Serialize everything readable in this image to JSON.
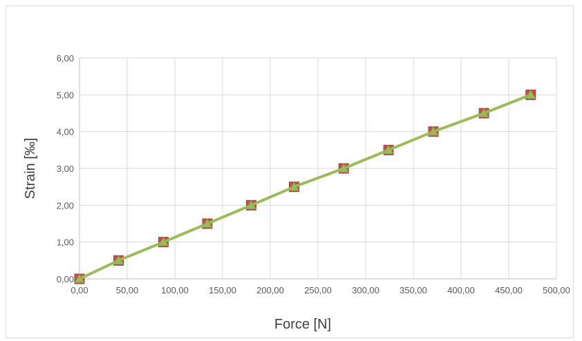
{
  "chart_data": {
    "type": "line",
    "title": "",
    "xlabel": "Force [N]",
    "ylabel": "Strain [‰]",
    "xlim": [
      0,
      500
    ],
    "ylim": [
      0,
      6
    ],
    "x_ticks": [
      "0,00",
      "50,00",
      "100,00",
      "150,00",
      "200,00",
      "250,00",
      "300,00",
      "350,00",
      "400,00",
      "450,00",
      "500,00"
    ],
    "y_ticks": [
      "0,00",
      "1,00",
      "2,00",
      "3,00",
      "4,00",
      "5,00",
      "6,00"
    ],
    "grid": true,
    "legend": "none",
    "series": [
      {
        "marker": "square",
        "color": "#c0504d",
        "x": [
          0,
          41,
          88,
          134,
          180,
          225,
          277,
          324,
          371,
          424,
          473
        ],
        "y": [
          0,
          0.5,
          1.0,
          1.5,
          2.0,
          2.5,
          3.0,
          3.5,
          4.0,
          4.5,
          5.0
        ]
      },
      {
        "marker": "triangle",
        "color": "#9bbb59",
        "x": [
          0,
          41,
          88,
          134,
          180,
          225,
          277,
          324,
          371,
          424,
          473
        ],
        "y": [
          0,
          0.5,
          1.0,
          1.5,
          2.0,
          2.5,
          3.0,
          3.5,
          4.0,
          4.5,
          5.0
        ]
      }
    ]
  }
}
